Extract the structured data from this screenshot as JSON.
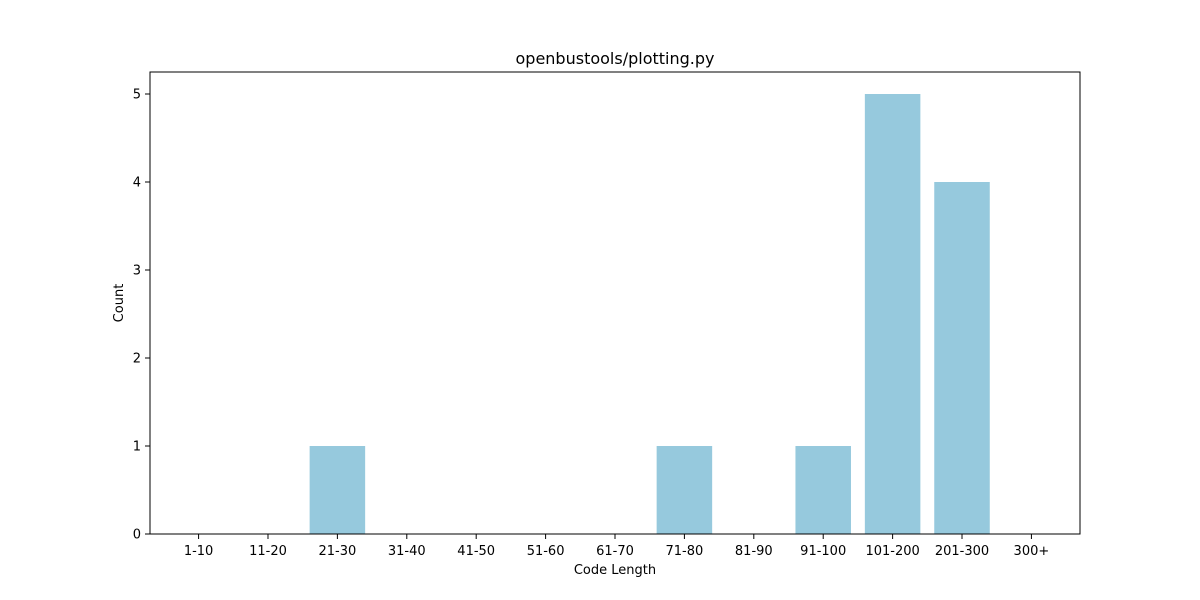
{
  "chart_data": {
    "type": "bar",
    "title": "openbustools/plotting.py",
    "xlabel": "Code Length",
    "ylabel": "Count",
    "categories": [
      "1-10",
      "11-20",
      "21-30",
      "31-40",
      "41-50",
      "51-60",
      "61-70",
      "71-80",
      "81-90",
      "91-100",
      "101-200",
      "201-300",
      "300+"
    ],
    "values": [
      0,
      0,
      1,
      0,
      0,
      0,
      0,
      1,
      0,
      1,
      5,
      4,
      0
    ],
    "ylim": [
      0,
      5.25
    ],
    "yticks": [
      0,
      1,
      2,
      3,
      4,
      5
    ],
    "bar_color": "#96c9dd",
    "grid": false,
    "legend": "none"
  }
}
